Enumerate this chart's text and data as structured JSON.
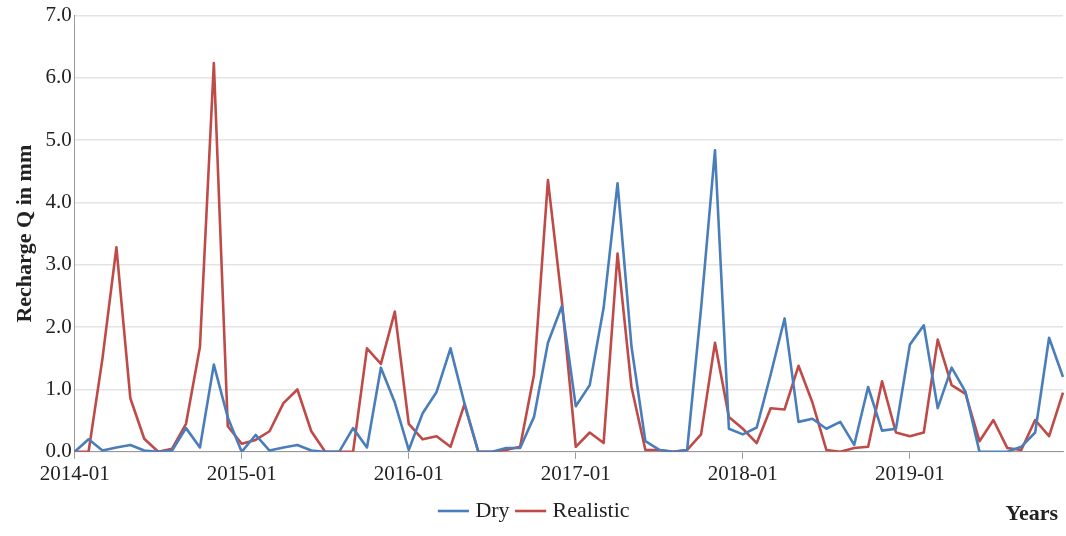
{
  "chart_data": {
    "type": "line",
    "xlabel": "Years",
    "ylabel": "Recharge Q in mm",
    "categories": [
      "2014-01",
      null,
      null,
      null,
      null,
      null,
      null,
      null,
      null,
      null,
      null,
      null,
      "2015-01",
      null,
      null,
      null,
      null,
      null,
      null,
      null,
      null,
      null,
      null,
      null,
      "2016-01",
      null,
      null,
      null,
      null,
      null,
      null,
      null,
      null,
      null,
      null,
      null,
      "2017-01",
      null,
      null,
      null,
      null,
      null,
      null,
      null,
      null,
      null,
      null,
      null,
      "2018-01",
      null,
      null,
      null,
      null,
      null,
      null,
      null,
      null,
      null,
      null,
      null,
      "2019-01",
      null,
      null,
      null,
      null,
      null,
      null,
      null,
      null,
      null,
      null,
      null
    ],
    "series": [
      {
        "name": "Dry",
        "color": "#4a7ebb",
        "values": [
          0,
          0.2,
          0.02,
          0.07,
          0.11,
          0.02,
          0,
          0.02,
          0.38,
          0.07,
          1.4,
          0.55,
          0,
          0.27,
          0.02,
          0.07,
          0.11,
          0.02,
          0,
          0,
          0.38,
          0.07,
          1.35,
          0.79,
          0.03,
          0.62,
          0.96,
          1.66,
          0.78,
          0,
          0,
          0.06,
          0.06,
          0.56,
          1.75,
          2.34,
          0.73,
          1.07,
          2.31,
          4.31,
          1.69,
          0.17,
          0.03,
          0,
          0.03,
          2.3,
          4.84,
          0.37,
          0.28,
          0.39,
          1.24,
          2.14,
          0.48,
          0.53,
          0.37,
          0.48,
          0.11,
          1.04,
          0.34,
          0.37,
          1.72,
          2.03,
          0.7,
          1.35,
          0.96,
          0,
          0,
          0,
          0.08,
          0.31,
          1.83,
          1.2
        ]
      },
      {
        "name": "Realistic",
        "color": "#be4b48",
        "values": [
          0,
          0,
          1.5,
          3.28,
          0.86,
          0.21,
          0,
          0.05,
          0.45,
          1.68,
          6.24,
          0.41,
          0.13,
          0.19,
          0.33,
          0.78,
          1.0,
          0.33,
          0,
          0,
          0,
          1.66,
          1.41,
          2.25,
          0.45,
          0.2,
          0.25,
          0.08,
          0.76,
          0,
          0,
          0.03,
          0.08,
          1.24,
          4.36,
          2.42,
          0.08,
          0.31,
          0.14,
          3.18,
          1.04,
          0.03,
          0.03,
          0,
          0.03,
          0.28,
          1.75,
          0.56,
          0.37,
          0.14,
          0.7,
          0.68,
          1.38,
          0.79,
          0.03,
          0,
          0.06,
          0.08,
          1.13,
          0.31,
          0.25,
          0.31,
          1.8,
          1.07,
          0.93,
          0.17,
          0.51,
          0.06,
          0.03,
          0.51,
          0.25,
          0.95
        ]
      }
    ],
    "ylim": [
      0,
      7
    ],
    "yticks": [
      {
        "value": 0,
        "label": "0.0"
      },
      {
        "value": 1,
        "label": "1.0"
      },
      {
        "value": 2,
        "label": "2.0"
      },
      {
        "value": 3,
        "label": "3.0"
      },
      {
        "value": 4,
        "label": "4.0"
      },
      {
        "value": 5,
        "label": "5.0"
      },
      {
        "value": 6,
        "label": "6.0"
      },
      {
        "value": 7,
        "label": "7.0"
      }
    ],
    "grid": "y",
    "legend": "bottom",
    "marker": "none",
    "line_style": "solid"
  }
}
